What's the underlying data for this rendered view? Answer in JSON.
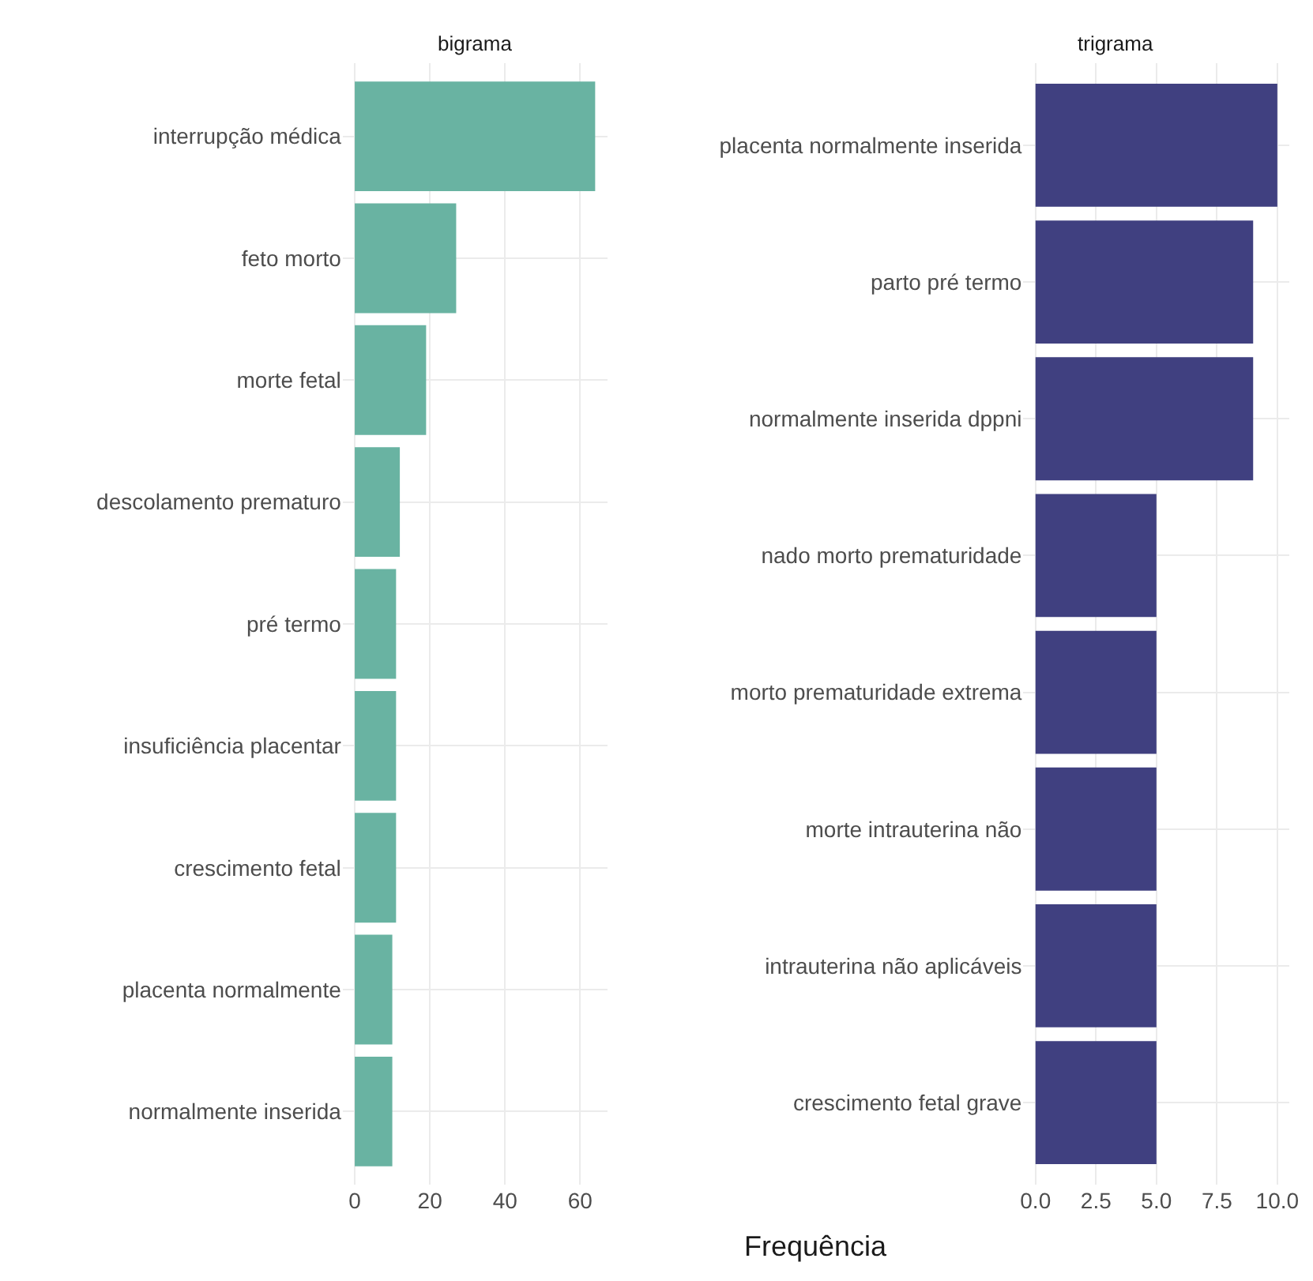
{
  "chart_data": [
    {
      "type": "bar",
      "orientation": "horizontal",
      "title": "bigrama",
      "categories": [
        "interrupção médica",
        "feto morto",
        "morte fetal",
        "descolamento prematuro",
        "pré termo",
        "insuficiência placentar",
        "crescimento fetal",
        "placenta normalmente",
        "normalmente inserida"
      ],
      "values": [
        64,
        27,
        19,
        12,
        11,
        11,
        11,
        10,
        10
      ],
      "color": "#69b3a2",
      "xlim": [
        -3.2,
        67.2
      ],
      "xticks": [
        0,
        20,
        40,
        60
      ],
      "grid": true
    },
    {
      "type": "bar",
      "orientation": "horizontal",
      "title": "trigrama",
      "xlabel": "Frequência",
      "categories": [
        "placenta normalmente inserida",
        "parto pré termo",
        "normalmente inserida dppni",
        "nado morto prematuridade",
        "morto prematuridade extrema",
        "morte intrauterina não",
        "intrauterina não aplicáveis",
        "crescimento fetal grave"
      ],
      "values": [
        10,
        9,
        9,
        5,
        5,
        5,
        5,
        5
      ],
      "color": "#404080",
      "xlim": [
        -0.5,
        10.5
      ],
      "xticks": [
        {
          "value": 0,
          "label": "0.0"
        },
        {
          "value": 2.5,
          "label": "2.5"
        },
        {
          "value": 5,
          "label": "5.0"
        },
        {
          "value": 7.5,
          "label": "7.5"
        },
        {
          "value": 10,
          "label": "10.0"
        }
      ],
      "grid": true
    }
  ]
}
